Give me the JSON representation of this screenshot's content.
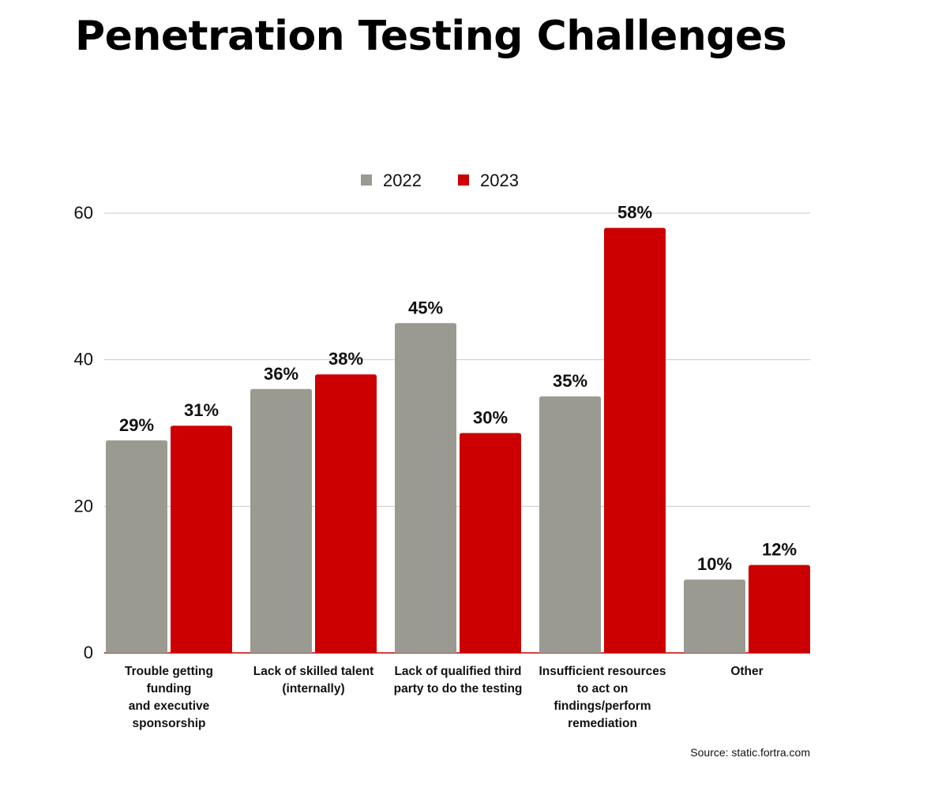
{
  "title": "Penetration Testing Challenges",
  "source": "Source: static.fortra.com",
  "colors": {
    "2022": "#9a9a91",
    "2023": "#cc0000",
    "grid": "#c8c8c8"
  },
  "chart_data": {
    "type": "bar",
    "title": "Penetration Testing Challenges",
    "xlabel": "",
    "ylabel": "",
    "ylim": [
      0,
      60
    ],
    "yticks": [
      0,
      20,
      40,
      60
    ],
    "grid": true,
    "legend_position": "top-center",
    "categories": [
      [
        "Trouble getting",
        "funding",
        "and executive",
        "sponsorship"
      ],
      [
        "Lack of skilled talent",
        "(internally)"
      ],
      [
        "Lack of qualified third",
        "party to do the testing"
      ],
      [
        "Insufficient resources",
        "to act on",
        "findings/perform",
        "remediation"
      ],
      [
        "Other"
      ]
    ],
    "series": [
      {
        "name": "2022",
        "values": [
          29,
          36,
          45,
          35,
          10
        ],
        "labels": [
          "29%",
          "36%",
          "45%",
          "35%",
          "10%"
        ]
      },
      {
        "name": "2023",
        "values": [
          31,
          38,
          30,
          58,
          12
        ],
        "labels": [
          "31%",
          "38%",
          "30%",
          "58%",
          "12%"
        ]
      }
    ]
  }
}
